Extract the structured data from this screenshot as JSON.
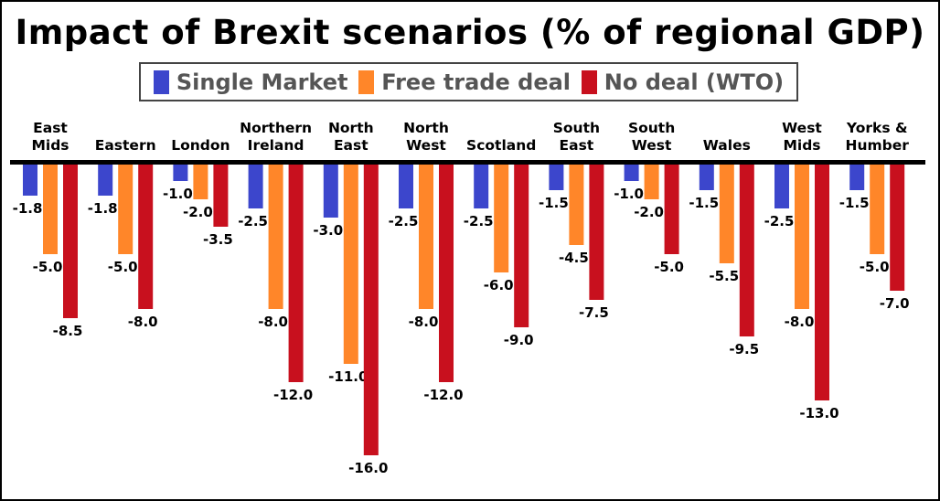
{
  "chart_data": {
    "type": "bar",
    "title": "Impact of Brexit scenarios (% of regional GDP)",
    "legend_position": "top",
    "grid": false,
    "ylim": [
      -16,
      0
    ],
    "categories": [
      [
        "East",
        "Mids"
      ],
      [
        "Eastern"
      ],
      [
        "London"
      ],
      [
        "Northern",
        "Ireland"
      ],
      [
        "North",
        "East"
      ],
      [
        "North",
        "West"
      ],
      [
        "Scotland"
      ],
      [
        "South",
        "East"
      ],
      [
        "South",
        "West"
      ],
      [
        "Wales"
      ],
      [
        "West",
        "Mids"
      ],
      [
        "Yorks &",
        "Humber"
      ]
    ],
    "series": [
      {
        "name": "Single Market",
        "color": "#3c46cc",
        "values": [
          -1.8,
          -1.8,
          -1.0,
          -2.5,
          -3.0,
          -2.5,
          -2.5,
          -1.5,
          -1.0,
          -1.5,
          -2.5,
          -1.5
        ]
      },
      {
        "name": "Free trade deal",
        "color": "#ff8629",
        "values": [
          -5.0,
          -5.0,
          -2.0,
          -8.0,
          -11.0,
          -8.0,
          -6.0,
          -4.5,
          -2.0,
          -5.5,
          -8.0,
          -5.0
        ]
      },
      {
        "name": "No deal (WTO)",
        "color": "#c8101e",
        "values": [
          -8.5,
          -8.0,
          -3.5,
          -12.0,
          -16.0,
          -12.0,
          -9.0,
          -7.5,
          -5.0,
          -9.5,
          -13.0,
          -7.0
        ]
      }
    ]
  }
}
